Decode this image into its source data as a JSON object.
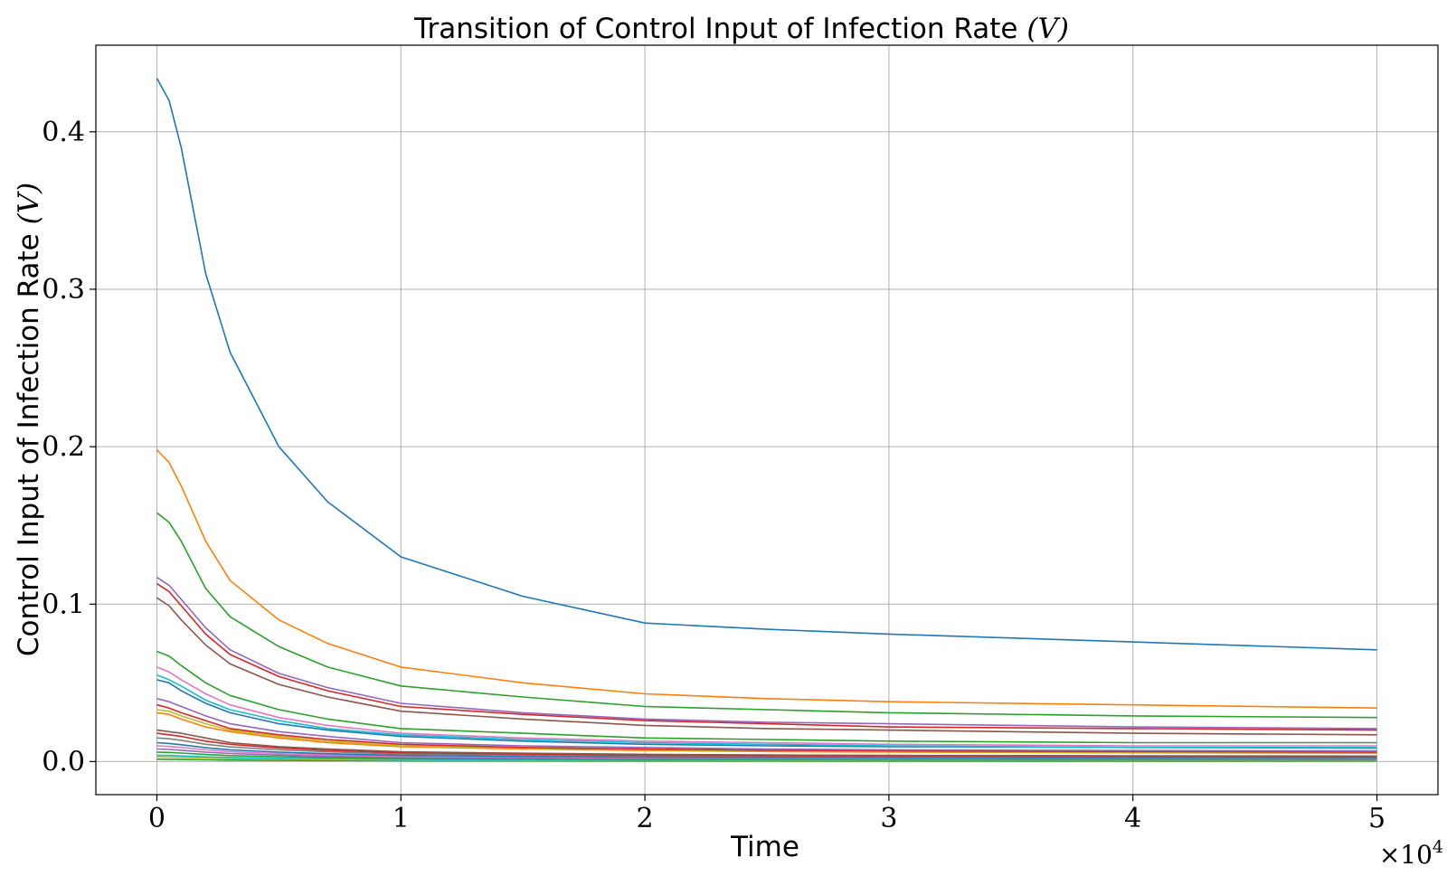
{
  "chart_data": {
    "type": "line",
    "title": "Transition of Control Input of Infection Rate ",
    "title_math": "(V)",
    "xlabel": "Time",
    "ylabel": "Control Input of Infection Rate ",
    "ylabel_math": "(V)",
    "x_multiplier_label": "×10",
    "x_multiplier_exp": "4",
    "xlim": [
      -0.25,
      5.25
    ],
    "ylim": [
      -0.021,
      0.455
    ],
    "grid": true,
    "legend": "none",
    "xticks": [
      {
        "value": 0,
        "label": "0"
      },
      {
        "value": 1,
        "label": "1"
      },
      {
        "value": 2,
        "label": "2"
      },
      {
        "value": 3,
        "label": "3"
      },
      {
        "value": 4,
        "label": "4"
      },
      {
        "value": 5,
        "label": "5"
      }
    ],
    "yticks": [
      {
        "value": 0.0,
        "label": "0.0"
      },
      {
        "value": 0.1,
        "label": "0.1"
      },
      {
        "value": 0.2,
        "label": "0.2"
      },
      {
        "value": 0.3,
        "label": "0.3"
      },
      {
        "value": 0.4,
        "label": "0.4"
      }
    ],
    "x": [
      0,
      0.05,
      0.1,
      0.2,
      0.3,
      0.5,
      0.7,
      1.0,
      1.5,
      2.0,
      2.5,
      3.0,
      4.0,
      5.0
    ],
    "series": [
      {
        "color": "#1f77b4",
        "values": [
          0.434,
          0.42,
          0.39,
          0.31,
          0.26,
          0.2,
          0.165,
          0.13,
          0.105,
          0.088,
          0.084,
          0.081,
          0.076,
          0.071
        ]
      },
      {
        "color": "#ff7f0e",
        "values": [
          0.198,
          0.19,
          0.175,
          0.14,
          0.115,
          0.09,
          0.075,
          0.06,
          0.05,
          0.043,
          0.04,
          0.038,
          0.036,
          0.034
        ]
      },
      {
        "color": "#2ca02c",
        "values": [
          0.158,
          0.152,
          0.14,
          0.11,
          0.092,
          0.073,
          0.06,
          0.048,
          0.041,
          0.035,
          0.033,
          0.031,
          0.029,
          0.028
        ]
      },
      {
        "color": "#9467bd",
        "values": [
          0.117,
          0.112,
          0.103,
          0.085,
          0.071,
          0.056,
          0.047,
          0.037,
          0.031,
          0.027,
          0.025,
          0.024,
          0.022,
          0.021
        ]
      },
      {
        "color": "#d62728",
        "values": [
          0.113,
          0.108,
          0.099,
          0.081,
          0.068,
          0.054,
          0.045,
          0.035,
          0.03,
          0.026,
          0.024,
          0.022,
          0.021,
          0.02
        ]
      },
      {
        "color": "#8c564b",
        "values": [
          0.104,
          0.099,
          0.09,
          0.074,
          0.062,
          0.049,
          0.041,
          0.032,
          0.027,
          0.023,
          0.021,
          0.02,
          0.018,
          0.017
        ]
      },
      {
        "color": "#2ca02c",
        "values": [
          0.07,
          0.067,
          0.061,
          0.05,
          0.042,
          0.033,
          0.027,
          0.021,
          0.018,
          0.015,
          0.014,
          0.013,
          0.012,
          0.012
        ]
      },
      {
        "color": "#e377c2",
        "values": [
          0.06,
          0.057,
          0.052,
          0.043,
          0.036,
          0.028,
          0.023,
          0.018,
          0.015,
          0.013,
          0.012,
          0.011,
          0.01,
          0.01
        ]
      },
      {
        "color": "#17becf",
        "values": [
          0.055,
          0.052,
          0.048,
          0.039,
          0.033,
          0.026,
          0.021,
          0.017,
          0.014,
          0.012,
          0.011,
          0.01,
          0.009,
          0.009
        ]
      },
      {
        "color": "#1f77b4",
        "values": [
          0.052,
          0.05,
          0.045,
          0.037,
          0.031,
          0.024,
          0.02,
          0.016,
          0.013,
          0.011,
          0.01,
          0.0095,
          0.009,
          0.0085
        ]
      },
      {
        "color": "#9467bd",
        "values": [
          0.04,
          0.038,
          0.035,
          0.029,
          0.024,
          0.019,
          0.016,
          0.012,
          0.01,
          0.009,
          0.008,
          0.0075,
          0.007,
          0.0068
        ]
      },
      {
        "color": "#d62728",
        "values": [
          0.036,
          0.034,
          0.031,
          0.026,
          0.021,
          0.017,
          0.014,
          0.011,
          0.009,
          0.008,
          0.0072,
          0.0068,
          0.0064,
          0.006
        ]
      },
      {
        "color": "#bcbd22",
        "values": [
          0.033,
          0.032,
          0.029,
          0.024,
          0.02,
          0.016,
          0.013,
          0.01,
          0.0085,
          0.0074,
          0.0068,
          0.0063,
          0.006,
          0.0056
        ]
      },
      {
        "color": "#ff7f0e",
        "values": [
          0.031,
          0.03,
          0.027,
          0.022,
          0.019,
          0.015,
          0.012,
          0.0095,
          0.008,
          0.007,
          0.0064,
          0.006,
          0.0056,
          0.0053
        ]
      },
      {
        "color": "#8c564b",
        "values": [
          0.02,
          0.019,
          0.018,
          0.015,
          0.012,
          0.0095,
          0.008,
          0.0062,
          0.0053,
          0.0046,
          0.0042,
          0.0039,
          0.0037,
          0.0035
        ]
      },
      {
        "color": "#d62728",
        "values": [
          0.018,
          0.017,
          0.016,
          0.013,
          0.011,
          0.0086,
          0.0072,
          0.0056,
          0.0048,
          0.0041,
          0.0038,
          0.0036,
          0.0033,
          0.0031
        ]
      },
      {
        "color": "#7f7f7f",
        "values": [
          0.015,
          0.0145,
          0.0135,
          0.011,
          0.0093,
          0.0074,
          0.0062,
          0.0048,
          0.0041,
          0.0036,
          0.0033,
          0.0031,
          0.0029,
          0.0027
        ]
      },
      {
        "color": "#1f77b4",
        "values": [
          0.012,
          0.0115,
          0.0107,
          0.0088,
          0.0075,
          0.006,
          0.005,
          0.0039,
          0.0033,
          0.0029,
          0.0026,
          0.0025,
          0.0023,
          0.0022
        ]
      },
      {
        "color": "#e377c2",
        "values": [
          0.01,
          0.0096,
          0.009,
          0.0074,
          0.0063,
          0.005,
          0.0042,
          0.0033,
          0.0028,
          0.0024,
          0.0022,
          0.0021,
          0.002,
          0.0019
        ]
      },
      {
        "color": "#9467bd",
        "values": [
          0.008,
          0.0077,
          0.0072,
          0.006,
          0.0051,
          0.0041,
          0.0034,
          0.0027,
          0.0023,
          0.002,
          0.0018,
          0.0017,
          0.0016,
          0.0015
        ]
      },
      {
        "color": "#2ca02c",
        "values": [
          0.006,
          0.0058,
          0.0054,
          0.0045,
          0.0038,
          0.0031,
          0.0026,
          0.002,
          0.0017,
          0.0015,
          0.0014,
          0.0013,
          0.0012,
          0.0012
        ]
      },
      {
        "color": "#17becf",
        "values": [
          0.004,
          0.0039,
          0.0036,
          0.003,
          0.0026,
          0.0021,
          0.0018,
          0.0014,
          0.0012,
          0.001,
          0.00095,
          0.0009,
          0.00085,
          0.0008
        ]
      },
      {
        "color": "#bcbd22",
        "values": [
          0.003,
          0.0029,
          0.0027,
          0.0023,
          0.0019,
          0.0016,
          0.0013,
          0.001,
          0.0009,
          0.0008,
          0.00072,
          0.00068,
          0.00064,
          0.0006
        ]
      },
      {
        "color": "#2ca02c",
        "values": [
          0.0015,
          0.00145,
          0.00135,
          0.0011,
          0.00095,
          0.00078,
          0.00065,
          0.0005,
          0.00043,
          0.00038,
          0.00035,
          0.00033,
          0.00031,
          0.0003
        ]
      }
    ]
  }
}
